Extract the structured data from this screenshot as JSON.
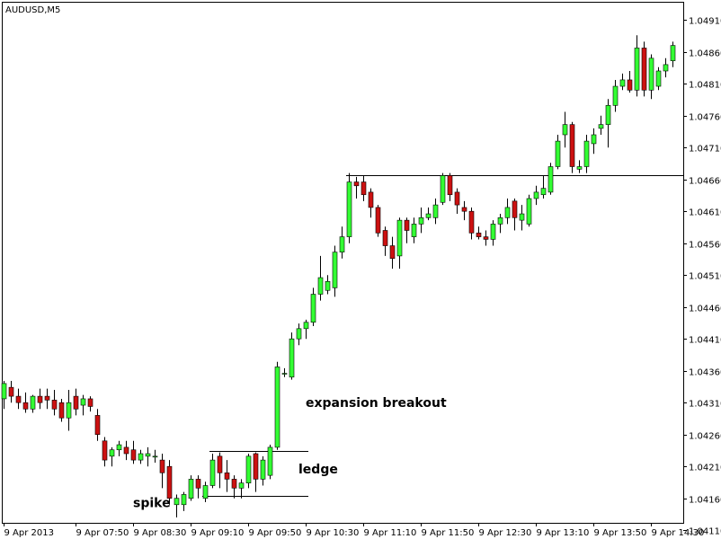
{
  "chart_data": {
    "type": "candlestick",
    "title": "AUDUSD,M5",
    "xlabel": "",
    "ylabel": "",
    "ylim": [
      1.0413,
      1.0493
    ],
    "grid": false,
    "colors": {
      "up": "#33ff33",
      "down": "#cc1111",
      "wick": "#000000",
      "frame": "#000000",
      "background": "#ffffff"
    },
    "y_ticks": [
      "1.04910",
      "1.04860",
      "1.04810",
      "1.04760",
      "1.04710",
      "1.04660",
      "1.04610",
      "1.04560",
      "1.04510",
      "1.04460",
      "1.04410",
      "1.04360",
      "1.04310",
      "1.04260",
      "1.04210",
      "1.04160",
      "1.04110"
    ],
    "x_ticks": [
      {
        "label": "9 Apr 2013",
        "index": 0
      },
      {
        "label": "9 Apr 07:50",
        "index": 10
      },
      {
        "label": "9 Apr 08:30",
        "index": 18
      },
      {
        "label": "9 Apr 09:10",
        "index": 26
      },
      {
        "label": "9 Apr 09:50",
        "index": 34
      },
      {
        "label": "9 Apr 10:30",
        "index": 42
      },
      {
        "label": "9 Apr 11:10",
        "index": 50
      },
      {
        "label": "9 Apr 11:50",
        "index": 58
      },
      {
        "label": "9 Apr 12:30",
        "index": 66
      },
      {
        "label": "9 Apr 13:10",
        "index": 74
      },
      {
        "label": "9 Apr 13:50",
        "index": 82
      },
      {
        "label": "9 Apr 14:30",
        "index": 90
      }
    ],
    "candles": [
      {
        "o": 1.04316,
        "h": 1.04344,
        "l": 1.043,
        "c": 1.0434
      },
      {
        "o": 1.04334,
        "h": 1.04344,
        "l": 1.0431,
        "c": 1.0432
      },
      {
        "o": 1.0432,
        "h": 1.04332,
        "l": 1.043,
        "c": 1.0431
      },
      {
        "o": 1.0431,
        "h": 1.04326,
        "l": 1.04294,
        "c": 1.043
      },
      {
        "o": 1.043,
        "h": 1.04322,
        "l": 1.04294,
        "c": 1.0432
      },
      {
        "o": 1.0432,
        "h": 1.04332,
        "l": 1.043,
        "c": 1.0431
      },
      {
        "o": 1.0432,
        "h": 1.04332,
        "l": 1.043,
        "c": 1.04314
      },
      {
        "o": 1.04314,
        "h": 1.0433,
        "l": 1.0429,
        "c": 1.043
      },
      {
        "o": 1.0431,
        "h": 1.04316,
        "l": 1.0428,
        "c": 1.04286
      },
      {
        "o": 1.04286,
        "h": 1.0433,
        "l": 1.04266,
        "c": 1.0431
      },
      {
        "o": 1.0432,
        "h": 1.04332,
        "l": 1.0429,
        "c": 1.043
      },
      {
        "o": 1.04306,
        "h": 1.04322,
        "l": 1.0429,
        "c": 1.04316
      },
      {
        "o": 1.04316,
        "h": 1.0432,
        "l": 1.04296,
        "c": 1.04304
      },
      {
        "o": 1.0429,
        "h": 1.043,
        "l": 1.0425,
        "c": 1.0426
      },
      {
        "o": 1.0425,
        "h": 1.04256,
        "l": 1.0421,
        "c": 1.0422
      },
      {
        "o": 1.04226,
        "h": 1.0424,
        "l": 1.0421,
        "c": 1.04236
      },
      {
        "o": 1.04236,
        "h": 1.0425,
        "l": 1.04226,
        "c": 1.04244
      },
      {
        "o": 1.0424,
        "h": 1.0425,
        "l": 1.0422,
        "c": 1.0423
      },
      {
        "o": 1.04236,
        "h": 1.0425,
        "l": 1.04214,
        "c": 1.0422
      },
      {
        "o": 1.0422,
        "h": 1.04236,
        "l": 1.04214,
        "c": 1.0423
      },
      {
        "o": 1.04226,
        "h": 1.0424,
        "l": 1.0421,
        "c": 1.0423
      },
      {
        "o": 1.04226,
        "h": 1.04236,
        "l": 1.04216,
        "c": 1.04226
      },
      {
        "o": 1.0422,
        "h": 1.0423,
        "l": 1.04176,
        "c": 1.042
      },
      {
        "o": 1.0421,
        "h": 1.0422,
        "l": 1.0415,
        "c": 1.0416
      },
      {
        "o": 1.0415,
        "h": 1.04166,
        "l": 1.0413,
        "c": 1.0416
      },
      {
        "o": 1.0415,
        "h": 1.0417,
        "l": 1.0414,
        "c": 1.04166
      },
      {
        "o": 1.0416,
        "h": 1.04196,
        "l": 1.04156,
        "c": 1.0419
      },
      {
        "o": 1.0419,
        "h": 1.04196,
        "l": 1.0416,
        "c": 1.04176
      },
      {
        "o": 1.0416,
        "h": 1.04186,
        "l": 1.04154,
        "c": 1.0418
      },
      {
        "o": 1.0418,
        "h": 1.0423,
        "l": 1.04176,
        "c": 1.0422
      },
      {
        "o": 1.04226,
        "h": 1.04232,
        "l": 1.04176,
        "c": 1.042
      },
      {
        "o": 1.042,
        "h": 1.0422,
        "l": 1.0417,
        "c": 1.0419
      },
      {
        "o": 1.0419,
        "h": 1.04196,
        "l": 1.0416,
        "c": 1.04176
      },
      {
        "o": 1.04176,
        "h": 1.0419,
        "l": 1.0416,
        "c": 1.04184
      },
      {
        "o": 1.04184,
        "h": 1.0423,
        "l": 1.04176,
        "c": 1.04226
      },
      {
        "o": 1.0423,
        "h": 1.04232,
        "l": 1.0417,
        "c": 1.0419
      },
      {
        "o": 1.0419,
        "h": 1.04226,
        "l": 1.0418,
        "c": 1.0422
      },
      {
        "o": 1.04196,
        "h": 1.04244,
        "l": 1.0419,
        "c": 1.0424
      },
      {
        "o": 1.0424,
        "h": 1.04374,
        "l": 1.04236,
        "c": 1.04366
      },
      {
        "o": 1.04356,
        "h": 1.04364,
        "l": 1.0435,
        "c": 1.04356
      },
      {
        "o": 1.0435,
        "h": 1.0442,
        "l": 1.04346,
        "c": 1.0441
      },
      {
        "o": 1.0441,
        "h": 1.04434,
        "l": 1.044,
        "c": 1.04426
      },
      {
        "o": 1.04426,
        "h": 1.0444,
        "l": 1.0441,
        "c": 1.04436
      },
      {
        "o": 1.04436,
        "h": 1.0449,
        "l": 1.0443,
        "c": 1.0448
      },
      {
        "o": 1.0448,
        "h": 1.0454,
        "l": 1.0447,
        "c": 1.04506
      },
      {
        "o": 1.04486,
        "h": 1.0451,
        "l": 1.0448,
        "c": 1.045
      },
      {
        "o": 1.0449,
        "h": 1.04556,
        "l": 1.04476,
        "c": 1.04546
      },
      {
        "o": 1.04546,
        "h": 1.04586,
        "l": 1.04536,
        "c": 1.0457
      },
      {
        "o": 1.0457,
        "h": 1.0467,
        "l": 1.0456,
        "c": 1.04656
      },
      {
        "o": 1.04656,
        "h": 1.04664,
        "l": 1.0463,
        "c": 1.0465
      },
      {
        "o": 1.04656,
        "h": 1.04666,
        "l": 1.04626,
        "c": 1.04636
      },
      {
        "o": 1.0464,
        "h": 1.04646,
        "l": 1.046,
        "c": 1.04616
      },
      {
        "o": 1.04616,
        "h": 1.0462,
        "l": 1.0457,
        "c": 1.04576
      },
      {
        "o": 1.0458,
        "h": 1.04586,
        "l": 1.0454,
        "c": 1.04556
      },
      {
        "o": 1.04556,
        "h": 1.0457,
        "l": 1.0452,
        "c": 1.04536
      },
      {
        "o": 1.0454,
        "h": 1.046,
        "l": 1.0452,
        "c": 1.04596
      },
      {
        "o": 1.04596,
        "h": 1.046,
        "l": 1.0456,
        "c": 1.0458
      },
      {
        "o": 1.0457,
        "h": 1.046,
        "l": 1.0456,
        "c": 1.0459
      },
      {
        "o": 1.0459,
        "h": 1.04616,
        "l": 1.04576,
        "c": 1.046
      },
      {
        "o": 1.046,
        "h": 1.04616,
        "l": 1.04596,
        "c": 1.04606
      },
      {
        "o": 1.046,
        "h": 1.0463,
        "l": 1.0459,
        "c": 1.0462
      },
      {
        "o": 1.04624,
        "h": 1.0467,
        "l": 1.0462,
        "c": 1.04666
      },
      {
        "o": 1.04666,
        "h": 1.0467,
        "l": 1.04626,
        "c": 1.04636
      },
      {
        "o": 1.0464,
        "h": 1.04646,
        "l": 1.04606,
        "c": 1.0462
      },
      {
        "o": 1.04616,
        "h": 1.04626,
        "l": 1.04596,
        "c": 1.0461
      },
      {
        "o": 1.0461,
        "h": 1.04616,
        "l": 1.04566,
        "c": 1.04576
      },
      {
        "o": 1.04576,
        "h": 1.04586,
        "l": 1.04566,
        "c": 1.0457
      },
      {
        "o": 1.0457,
        "h": 1.0458,
        "l": 1.04556,
        "c": 1.04566
      },
      {
        "o": 1.04566,
        "h": 1.04596,
        "l": 1.04556,
        "c": 1.0459
      },
      {
        "o": 1.0459,
        "h": 1.04606,
        "l": 1.04576,
        "c": 1.046
      },
      {
        "o": 1.046,
        "h": 1.0463,
        "l": 1.0459,
        "c": 1.04616
      },
      {
        "o": 1.04626,
        "h": 1.0463,
        "l": 1.0458,
        "c": 1.046
      },
      {
        "o": 1.04596,
        "h": 1.0462,
        "l": 1.0458,
        "c": 1.04606
      },
      {
        "o": 1.0459,
        "h": 1.04636,
        "l": 1.04586,
        "c": 1.0463
      },
      {
        "o": 1.0463,
        "h": 1.0465,
        "l": 1.0462,
        "c": 1.0464
      },
      {
        "o": 1.04636,
        "h": 1.04666,
        "l": 1.0463,
        "c": 1.04646
      },
      {
        "o": 1.0464,
        "h": 1.04686,
        "l": 1.04636,
        "c": 1.0468
      },
      {
        "o": 1.0468,
        "h": 1.0473,
        "l": 1.04676,
        "c": 1.0472
      },
      {
        "o": 1.0473,
        "h": 1.04766,
        "l": 1.0471,
        "c": 1.04746
      },
      {
        "o": 1.04746,
        "h": 1.0475,
        "l": 1.0467,
        "c": 1.0468
      },
      {
        "o": 1.04676,
        "h": 1.0469,
        "l": 1.0467,
        "c": 1.0468
      },
      {
        "o": 1.0468,
        "h": 1.0473,
        "l": 1.0467,
        "c": 1.0472
      },
      {
        "o": 1.04716,
        "h": 1.0474,
        "l": 1.047,
        "c": 1.0473
      },
      {
        "o": 1.0474,
        "h": 1.0476,
        "l": 1.0473,
        "c": 1.04746
      },
      {
        "o": 1.04746,
        "h": 1.04786,
        "l": 1.0471,
        "c": 1.04776
      },
      {
        "o": 1.04776,
        "h": 1.04816,
        "l": 1.04766,
        "c": 1.04806
      },
      {
        "o": 1.04806,
        "h": 1.04826,
        "l": 1.048,
        "c": 1.04816
      },
      {
        "o": 1.04816,
        "h": 1.0483,
        "l": 1.04796,
        "c": 1.048
      },
      {
        "o": 1.048,
        "h": 1.04886,
        "l": 1.0479,
        "c": 1.04866
      },
      {
        "o": 1.04866,
        "h": 1.04876,
        "l": 1.0479,
        "c": 1.048
      },
      {
        "o": 1.048,
        "h": 1.04856,
        "l": 1.04786,
        "c": 1.0485
      },
      {
        "o": 1.04806,
        "h": 1.04836,
        "l": 1.048,
        "c": 1.0483
      },
      {
        "o": 1.0483,
        "h": 1.0485,
        "l": 1.0482,
        "c": 1.0484
      },
      {
        "o": 1.04846,
        "h": 1.04876,
        "l": 1.04836,
        "c": 1.0487
      }
    ],
    "levels": [
      {
        "y": 1.04666,
        "from": 48,
        "to": 96
      },
      {
        "y": 1.04234,
        "from": 29,
        "to": 42
      },
      {
        "y": 1.04164,
        "from": 28,
        "to": 42
      }
    ],
    "annotations": [
      {
        "text": "expansion breakout",
        "index": 42,
        "y": 1.04303
      },
      {
        "text": "ledge",
        "index": 41,
        "y": 1.04199
      },
      {
        "text": "spike",
        "index": 18,
        "y": 1.04146
      }
    ]
  }
}
